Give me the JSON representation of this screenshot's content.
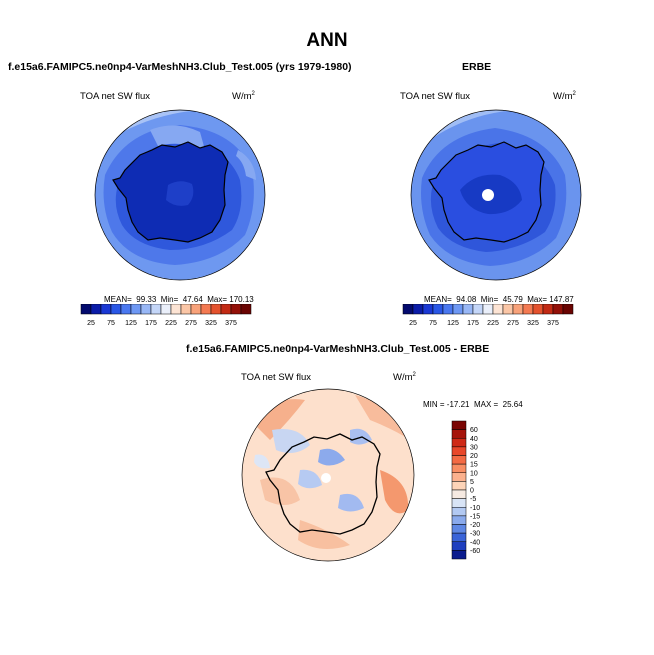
{
  "page": {
    "title": "ANN",
    "colors": {
      "background": "#ffffff",
      "land_outline": "#000000"
    }
  },
  "panels": {
    "model": {
      "title": "f.e15a6.FAMIPC5.ne0np4-VarMeshNH3.Club_Test.005 (yrs 1979-1980)",
      "variable": "TOA net SW flux",
      "units_base": "W/m",
      "units_exp": "2",
      "stats": {
        "mean_label": "MEAN=",
        "mean": "99.33",
        "min_label": "Min=",
        "min": "47.64",
        "max_label": "Max=",
        "max": "170.13"
      }
    },
    "obs": {
      "title": "ERBE",
      "variable": "TOA net SW flux",
      "units_base": "W/m",
      "units_exp": "2",
      "stats": {
        "mean_label": "MEAN=",
        "mean": "94.08",
        "min_label": "Min=",
        "min": "45.79",
        "max_label": "Max=",
        "max": "147.87"
      }
    },
    "diff": {
      "title": "f.e15a6.FAMIPC5.ne0np4-VarMeshNH3.Club_Test.005 - ERBE",
      "variable": "TOA net SW flux",
      "units_base": "W/m",
      "units_exp": "2",
      "stats": {
        "min_label": "MIN =",
        "min": "-17.21",
        "max_label": "MAX =",
        "max": "25.64"
      }
    }
  },
  "colorbars": {
    "horizontal": {
      "labels": [
        "25",
        "75",
        "125",
        "175",
        "225",
        "275",
        "325",
        "375"
      ],
      "colors": [
        "#030a6e",
        "#0b1ca8",
        "#1a38d4",
        "#2a57e6",
        "#4a78f0",
        "#6e98f4",
        "#98b7f6",
        "#c4d6f8",
        "#eaeffa",
        "#fde4d4",
        "#fbc6a6",
        "#f8a27a",
        "#f47a52",
        "#e4522e",
        "#c22a14",
        "#931008",
        "#6a0402"
      ]
    },
    "vertical": {
      "labels": [
        "60",
        "40",
        "30",
        "20",
        "15",
        "10",
        "5",
        "0",
        "-5",
        "-10",
        "-15",
        "-20",
        "-30",
        "-40",
        "-60"
      ],
      "colors": [
        "#7a0503",
        "#a6140b",
        "#cf2a17",
        "#e8472a",
        "#f36a44",
        "#f88e64",
        "#fbb18e",
        "#fdd4b8",
        "#f6eae2",
        "#d8e4f6",
        "#b2c9f2",
        "#8aaaec",
        "#5f88e4",
        "#3a64d8",
        "#1e3fbf",
        "#0b1c8e"
      ]
    }
  },
  "map_data": {
    "projection": "south-polar-stereographic",
    "field": "TOA net SW flux",
    "region": "Antarctica"
  }
}
